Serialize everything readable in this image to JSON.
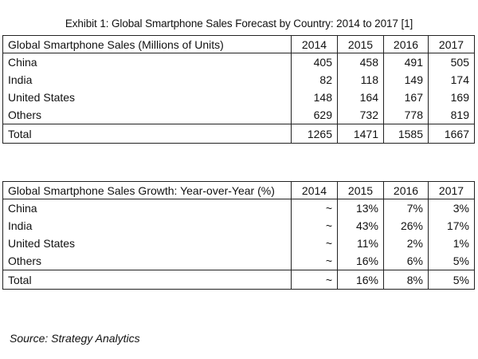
{
  "exhibit_title": "Exhibit 1: Global Smartphone Sales Forecast by Country: 2014 to 2017 [1]",
  "source": "Source: Strategy Analytics",
  "chart_data": [
    {
      "type": "table",
      "title": "Global Smartphone Sales  (Millions of Units)",
      "columns": [
        "2014",
        "2015",
        "2016",
        "2017"
      ],
      "rows": [
        {
          "label": "China",
          "values": [
            "405",
            "458",
            "491",
            "505"
          ]
        },
        {
          "label": "India",
          "values": [
            "82",
            "118",
            "149",
            "174"
          ]
        },
        {
          "label": "United States",
          "values": [
            "148",
            "164",
            "167",
            "169"
          ]
        },
        {
          "label": "Others",
          "values": [
            "629",
            "732",
            "778",
            "819"
          ]
        }
      ],
      "total": {
        "label": "Total",
        "values": [
          "1265",
          "1471",
          "1585",
          "1667"
        ]
      }
    },
    {
      "type": "table",
      "title": "Global Smartphone Sales Growth: Year-over-Year (%)",
      "columns": [
        "2014",
        "2015",
        "2016",
        "2017"
      ],
      "rows": [
        {
          "label": "China",
          "values": [
            "~",
            "13%",
            "7%",
            "3%"
          ]
        },
        {
          "label": "India",
          "values": [
            "~",
            "43%",
            "26%",
            "17%"
          ]
        },
        {
          "label": "United States",
          "values": [
            "~",
            "11%",
            "2%",
            "1%"
          ]
        },
        {
          "label": "Others",
          "values": [
            "~",
            "16%",
            "6%",
            "5%"
          ]
        }
      ],
      "total": {
        "label": "Total",
        "values": [
          "~",
          "16%",
          "8%",
          "5%"
        ]
      }
    }
  ]
}
